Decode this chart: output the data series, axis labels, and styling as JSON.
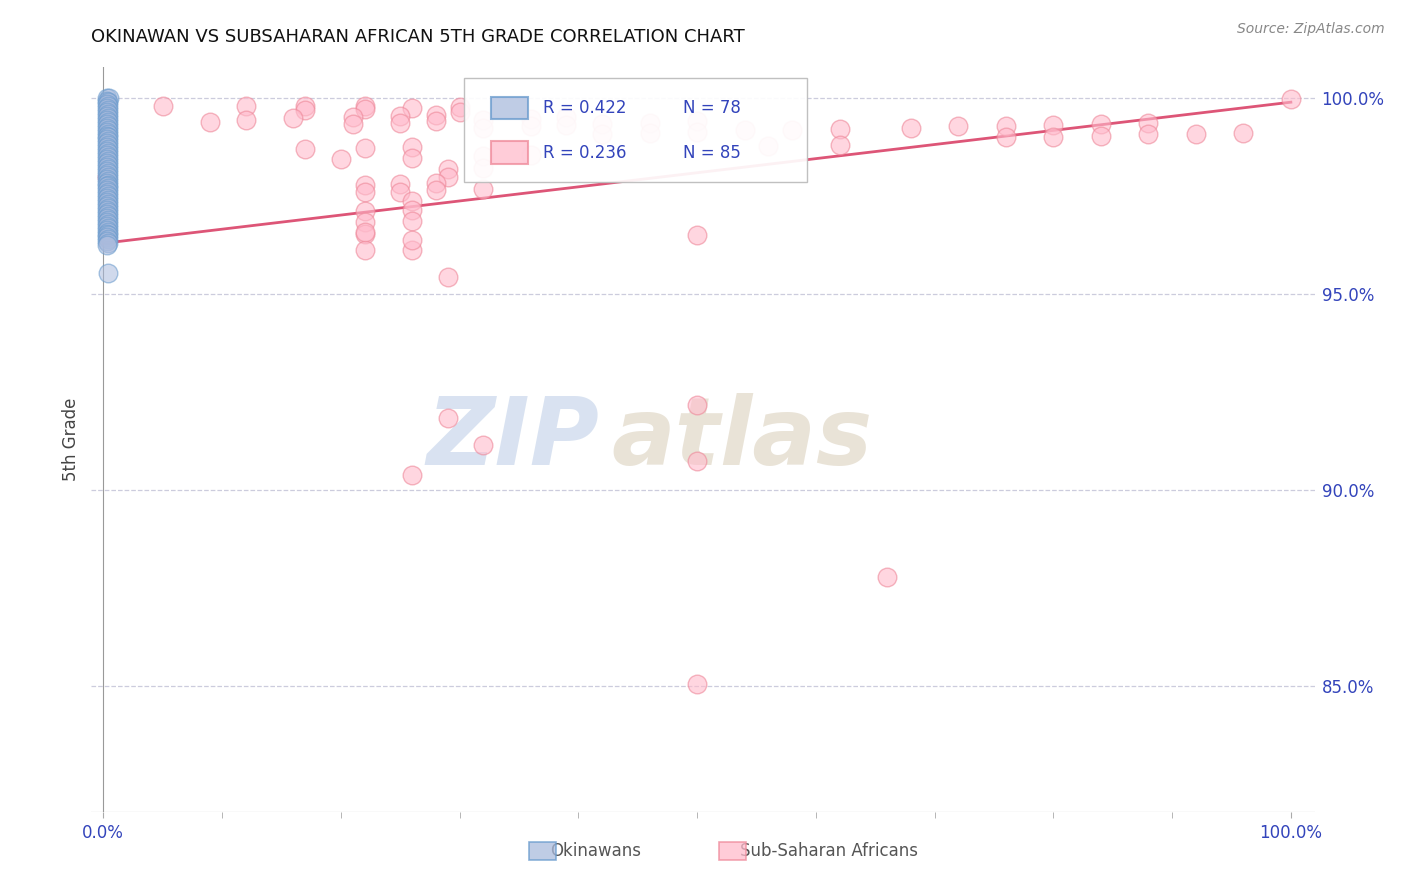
{
  "title": "OKINAWAN VS SUBSAHARAN AFRICAN 5TH GRADE CORRELATION CHART",
  "source": "Source: ZipAtlas.com",
  "ylabel": "5th Grade",
  "ytick_vals": [
    0.85,
    0.9,
    0.95,
    1.0
  ],
  "ytick_labels": [
    "85.0%",
    "90.0%",
    "95.0%",
    "100.0%"
  ],
  "xtick_vals": [
    0.0,
    1.0
  ],
  "xtick_labels": [
    "0.0%",
    "100.0%"
  ],
  "xlim": [
    -0.01,
    1.02
  ],
  "ylim": [
    0.818,
    1.008
  ],
  "legend_r1": "R = 0.422",
  "legend_n1": "N = 78",
  "legend_r2": "R = 0.236",
  "legend_n2": "N = 85",
  "blue_color": "#6699CC",
  "blue_face": "#AABBDD",
  "pink_color": "#EE8899",
  "pink_face": "#FFBBCC",
  "trendline_color": "#DD5577",
  "trendline_x": [
    0.0,
    1.0
  ],
  "trendline_y": [
    0.963,
    0.999
  ],
  "title_fontsize": 13,
  "axis_color": "#3344BB",
  "grid_color": "#CCCCDD",
  "blue_x": [
    0.003,
    0.005,
    0.003,
    0.004,
    0.003,
    0.004,
    0.003,
    0.004,
    0.003,
    0.004,
    0.003,
    0.004,
    0.003,
    0.004,
    0.003,
    0.004,
    0.003,
    0.004,
    0.003,
    0.004,
    0.003,
    0.004,
    0.003,
    0.004,
    0.003,
    0.004,
    0.003,
    0.004,
    0.003,
    0.004,
    0.003,
    0.004,
    0.003,
    0.004,
    0.003,
    0.004,
    0.003,
    0.004,
    0.003,
    0.004,
    0.003,
    0.004,
    0.003,
    0.004,
    0.003,
    0.004,
    0.003,
    0.004,
    0.003,
    0.004,
    0.003,
    0.004,
    0.003,
    0.004,
    0.003,
    0.004,
    0.003,
    0.004,
    0.003,
    0.004,
    0.003,
    0.004,
    0.003,
    0.004,
    0.003,
    0.004,
    0.003,
    0.004,
    0.003,
    0.004,
    0.003,
    0.004,
    0.003,
    0.004,
    0.003,
    0.004,
    0.003,
    0.004
  ],
  "blue_y": [
    1.0,
    1.0,
    0.9993,
    0.999,
    0.9985,
    0.998,
    0.9975,
    0.997,
    0.9965,
    0.996,
    0.9955,
    0.995,
    0.9945,
    0.994,
    0.9935,
    0.993,
    0.9925,
    0.992,
    0.9915,
    0.991,
    0.9905,
    0.99,
    0.9895,
    0.989,
    0.9885,
    0.988,
    0.9875,
    0.987,
    0.9865,
    0.986,
    0.9855,
    0.985,
    0.9845,
    0.984,
    0.9835,
    0.983,
    0.9825,
    0.982,
    0.9815,
    0.981,
    0.9805,
    0.98,
    0.9795,
    0.979,
    0.9785,
    0.978,
    0.9775,
    0.977,
    0.9765,
    0.976,
    0.9755,
    0.975,
    0.9745,
    0.974,
    0.9735,
    0.973,
    0.9725,
    0.972,
    0.9715,
    0.971,
    0.9705,
    0.97,
    0.9695,
    0.969,
    0.9685,
    0.968,
    0.9675,
    0.967,
    0.9665,
    0.966,
    0.9655,
    0.965,
    0.9645,
    0.964,
    0.9635,
    0.963,
    0.9625,
    0.9555
  ],
  "pink_x": [
    0.003,
    0.05,
    0.12,
    0.17,
    0.22,
    0.17,
    0.22,
    0.26,
    0.3,
    0.3,
    0.09,
    0.12,
    0.16,
    0.21,
    0.25,
    0.28,
    0.21,
    0.25,
    0.28,
    0.32,
    0.36,
    0.39,
    0.32,
    0.36,
    0.39,
    0.42,
    0.46,
    0.5,
    0.42,
    0.46,
    0.5,
    0.54,
    0.58,
    0.62,
    0.68,
    0.72,
    0.76,
    0.8,
    0.84,
    0.88,
    0.76,
    0.8,
    0.84,
    0.88,
    0.92,
    0.96,
    1.0,
    0.17,
    0.22,
    0.26,
    0.56,
    0.62,
    0.2,
    0.26,
    0.32,
    0.36,
    0.29,
    0.32,
    0.29,
    0.22,
    0.25,
    0.28,
    0.22,
    0.25,
    0.28,
    0.32,
    0.26,
    0.22,
    0.26,
    0.22,
    0.26,
    0.22,
    0.5,
    0.22,
    0.26,
    0.29,
    0.32,
    0.26,
    0.66,
    0.5,
    0.5,
    0.22,
    0.26,
    0.29,
    0.5
  ],
  "pink_y": [
    0.98,
    0.998,
    0.998,
    0.998,
    0.998,
    0.997,
    0.9972,
    0.9975,
    0.9978,
    0.9965,
    0.994,
    0.9945,
    0.995,
    0.9952,
    0.9955,
    0.9958,
    0.9935,
    0.9938,
    0.9942,
    0.9945,
    0.9948,
    0.9952,
    0.9925,
    0.9928,
    0.9932,
    0.9935,
    0.9938,
    0.9942,
    0.991,
    0.9912,
    0.9915,
    0.9918,
    0.992,
    0.9922,
    0.9925,
    0.9928,
    0.993,
    0.9932,
    0.9935,
    0.9938,
    0.99,
    0.9902,
    0.9905,
    0.9908,
    0.991,
    0.9912,
    0.9998,
    0.987,
    0.9872,
    0.9875,
    0.9878,
    0.9882,
    0.9845,
    0.9848,
    0.9852,
    0.9855,
    0.982,
    0.9822,
    0.98,
    0.978,
    0.9782,
    0.9785,
    0.976,
    0.9762,
    0.9765,
    0.9768,
    0.9738,
    0.9712,
    0.9715,
    0.9685,
    0.9688,
    0.9655,
    0.9218,
    0.9612,
    0.9612,
    0.9185,
    0.9115,
    0.904,
    0.878,
    0.9075,
    0.8505,
    0.9658,
    0.9638,
    0.9545,
    0.965
  ]
}
